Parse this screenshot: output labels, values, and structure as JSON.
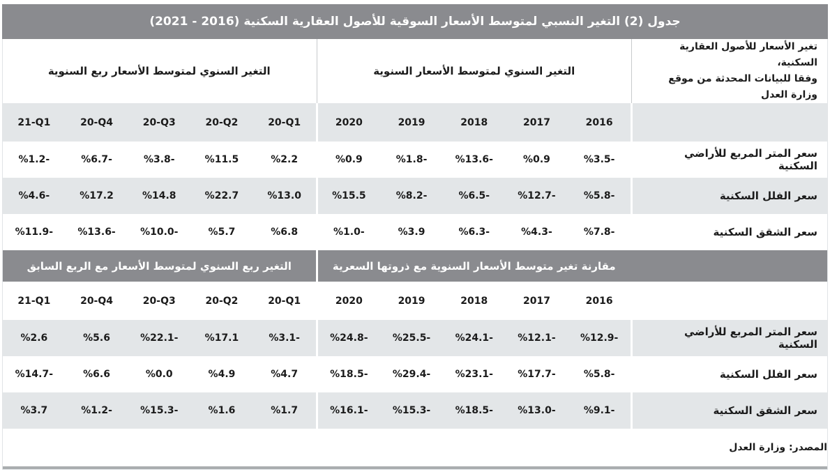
{
  "title": "جدول (2) التغير النسبي لمتوسط الأسعار السوقية للأصول العقارية السكنية (2016 - 2021)",
  "columns": {
    "years": [
      "2016",
      "2017",
      "2018",
      "2019",
      "2020"
    ],
    "quarters": [
      "20-Q1",
      "20-Q2",
      "20-Q3",
      "20-Q4",
      "21-Q1"
    ]
  },
  "sections": [
    {
      "corner_line1": "تغير الأسعار للأصول العقارية السكنية،",
      "corner_line2": "وفقا للبيانات المحدثة من موقع وزارة العدل",
      "annual_header": "التغير السنوي لمتوسط الأسعار السنوية",
      "quarterly_header": "التغير السنوي لمتوسط الأسعار ربع السنوية",
      "rows": [
        {
          "label": "سعر المتر المربع للأراضي السكنية",
          "years": [
            "%3.5-",
            "%0.9",
            "%13.6-",
            "%1.8-",
            "%0.9"
          ],
          "quarters": [
            "%2.2",
            "%11.5",
            "%3.8-",
            "%6.7-",
            "%1.2-"
          ]
        },
        {
          "label": "سعر الفلل السكنية",
          "years": [
            "%5.8-",
            "%12.7-",
            "%6.5-",
            "%8.2-",
            "%15.5"
          ],
          "quarters": [
            "%13.0",
            "%22.7",
            "%14.8",
            "%17.2",
            "%4.6-"
          ]
        },
        {
          "label": "سعر الشقق السكنية",
          "years": [
            "%7.8-",
            "%4.3-",
            "%6.3-",
            "%3.9",
            "%1.0-"
          ],
          "quarters": [
            "%6.8",
            "%5.7",
            "%10.0-",
            "%13.6-",
            "%11.9-"
          ]
        }
      ]
    },
    {
      "annual_header": "مقارنة تغير متوسط الأسعار السنوية مع ذروتها السعرية",
      "quarterly_header": "التغير ربع السنوي لمتوسط الأسعار مع الربع السابق",
      "rows": [
        {
          "label": "سعر المتر المربع للأراضي السكنية",
          "years": [
            "%12.9-",
            "%12.1-",
            "%24.1-",
            "%25.5-",
            "%24.8-"
          ],
          "quarters": [
            "%3.1-",
            "%17.1",
            "%22.1-",
            "%5.6",
            "%2.6"
          ]
        },
        {
          "label": "سعر الفلل السكنية",
          "years": [
            "%5.8-",
            "%17.7-",
            "%23.1-",
            "%29.4-",
            "%18.5-"
          ],
          "quarters": [
            "%4.7",
            "%4.9",
            "%0.0",
            "%6.6",
            "%14.7-"
          ]
        },
        {
          "label": "سعر الشقق السكنية",
          "years": [
            "%9.1-",
            "%13.0-",
            "%18.5-",
            "%15.3-",
            "%16.1-"
          ],
          "quarters": [
            "%1.7",
            "%1.6",
            "%15.3-",
            "%1.2-",
            "%3.7"
          ]
        }
      ]
    }
  ],
  "footer": {
    "source": "المصدر: وزارة العدل"
  },
  "colors": {
    "header_band": "#8a8b8f",
    "row_shade": "#e3e6e8",
    "divider_line": "#c7cacc",
    "bottom_bar": "#aaadaf"
  },
  "chart_data": [
    {
      "type": "table",
      "title": "جدول (2) التغير النسبي لمتوسط الأسعار السوقية للأصول العقارية السكنية (2016 - 2021)",
      "section": "التغير السنوي لمتوسط الأسعار السنوية / التغير السنوي لمتوسط الأسعار ربع السنوية",
      "unit": "%",
      "columns": [
        "2016",
        "2017",
        "2018",
        "2019",
        "2020",
        "20-Q1",
        "20-Q2",
        "20-Q3",
        "20-Q4",
        "21-Q1"
      ],
      "rows": [
        {
          "label": "سعر المتر المربع للأراضي السكنية",
          "values": [
            -3.5,
            0.9,
            -13.6,
            -1.8,
            0.9,
            2.2,
            11.5,
            -3.8,
            -6.7,
            -1.2
          ]
        },
        {
          "label": "سعر الفلل السكنية",
          "values": [
            -5.8,
            -12.7,
            -6.5,
            -8.2,
            15.5,
            13.0,
            22.7,
            14.8,
            17.2,
            -4.6
          ]
        },
        {
          "label": "سعر الشقق السكنية",
          "values": [
            -7.8,
            -4.3,
            -6.3,
            3.9,
            -1.0,
            6.8,
            5.7,
            -10.0,
            -13.6,
            -11.9
          ]
        }
      ]
    },
    {
      "type": "table",
      "section": "مقارنة تغير متوسط الأسعار السنوية مع ذروتها السعرية / التغير ربع السنوي لمتوسط الأسعار مع الربع السابق",
      "unit": "%",
      "columns": [
        "2016",
        "2017",
        "2018",
        "2019",
        "2020",
        "20-Q1",
        "20-Q2",
        "20-Q3",
        "20-Q4",
        "21-Q1"
      ],
      "rows": [
        {
          "label": "سعر المتر المربع للأراضي السكنية",
          "values": [
            -12.9,
            -12.1,
            -24.1,
            -25.5,
            -24.8,
            -3.1,
            17.1,
            -22.1,
            5.6,
            2.6
          ]
        },
        {
          "label": "سعر الفلل السكنية",
          "values": [
            -5.8,
            -17.7,
            -23.1,
            -29.4,
            -18.5,
            4.7,
            4.9,
            0.0,
            6.6,
            -14.7
          ]
        },
        {
          "label": "سعر الشقق السكنية",
          "values": [
            -9.1,
            -13.0,
            -18.5,
            -15.3,
            -16.1,
            1.7,
            1.6,
            -15.3,
            -1.2,
            3.7
          ]
        }
      ]
    }
  ]
}
